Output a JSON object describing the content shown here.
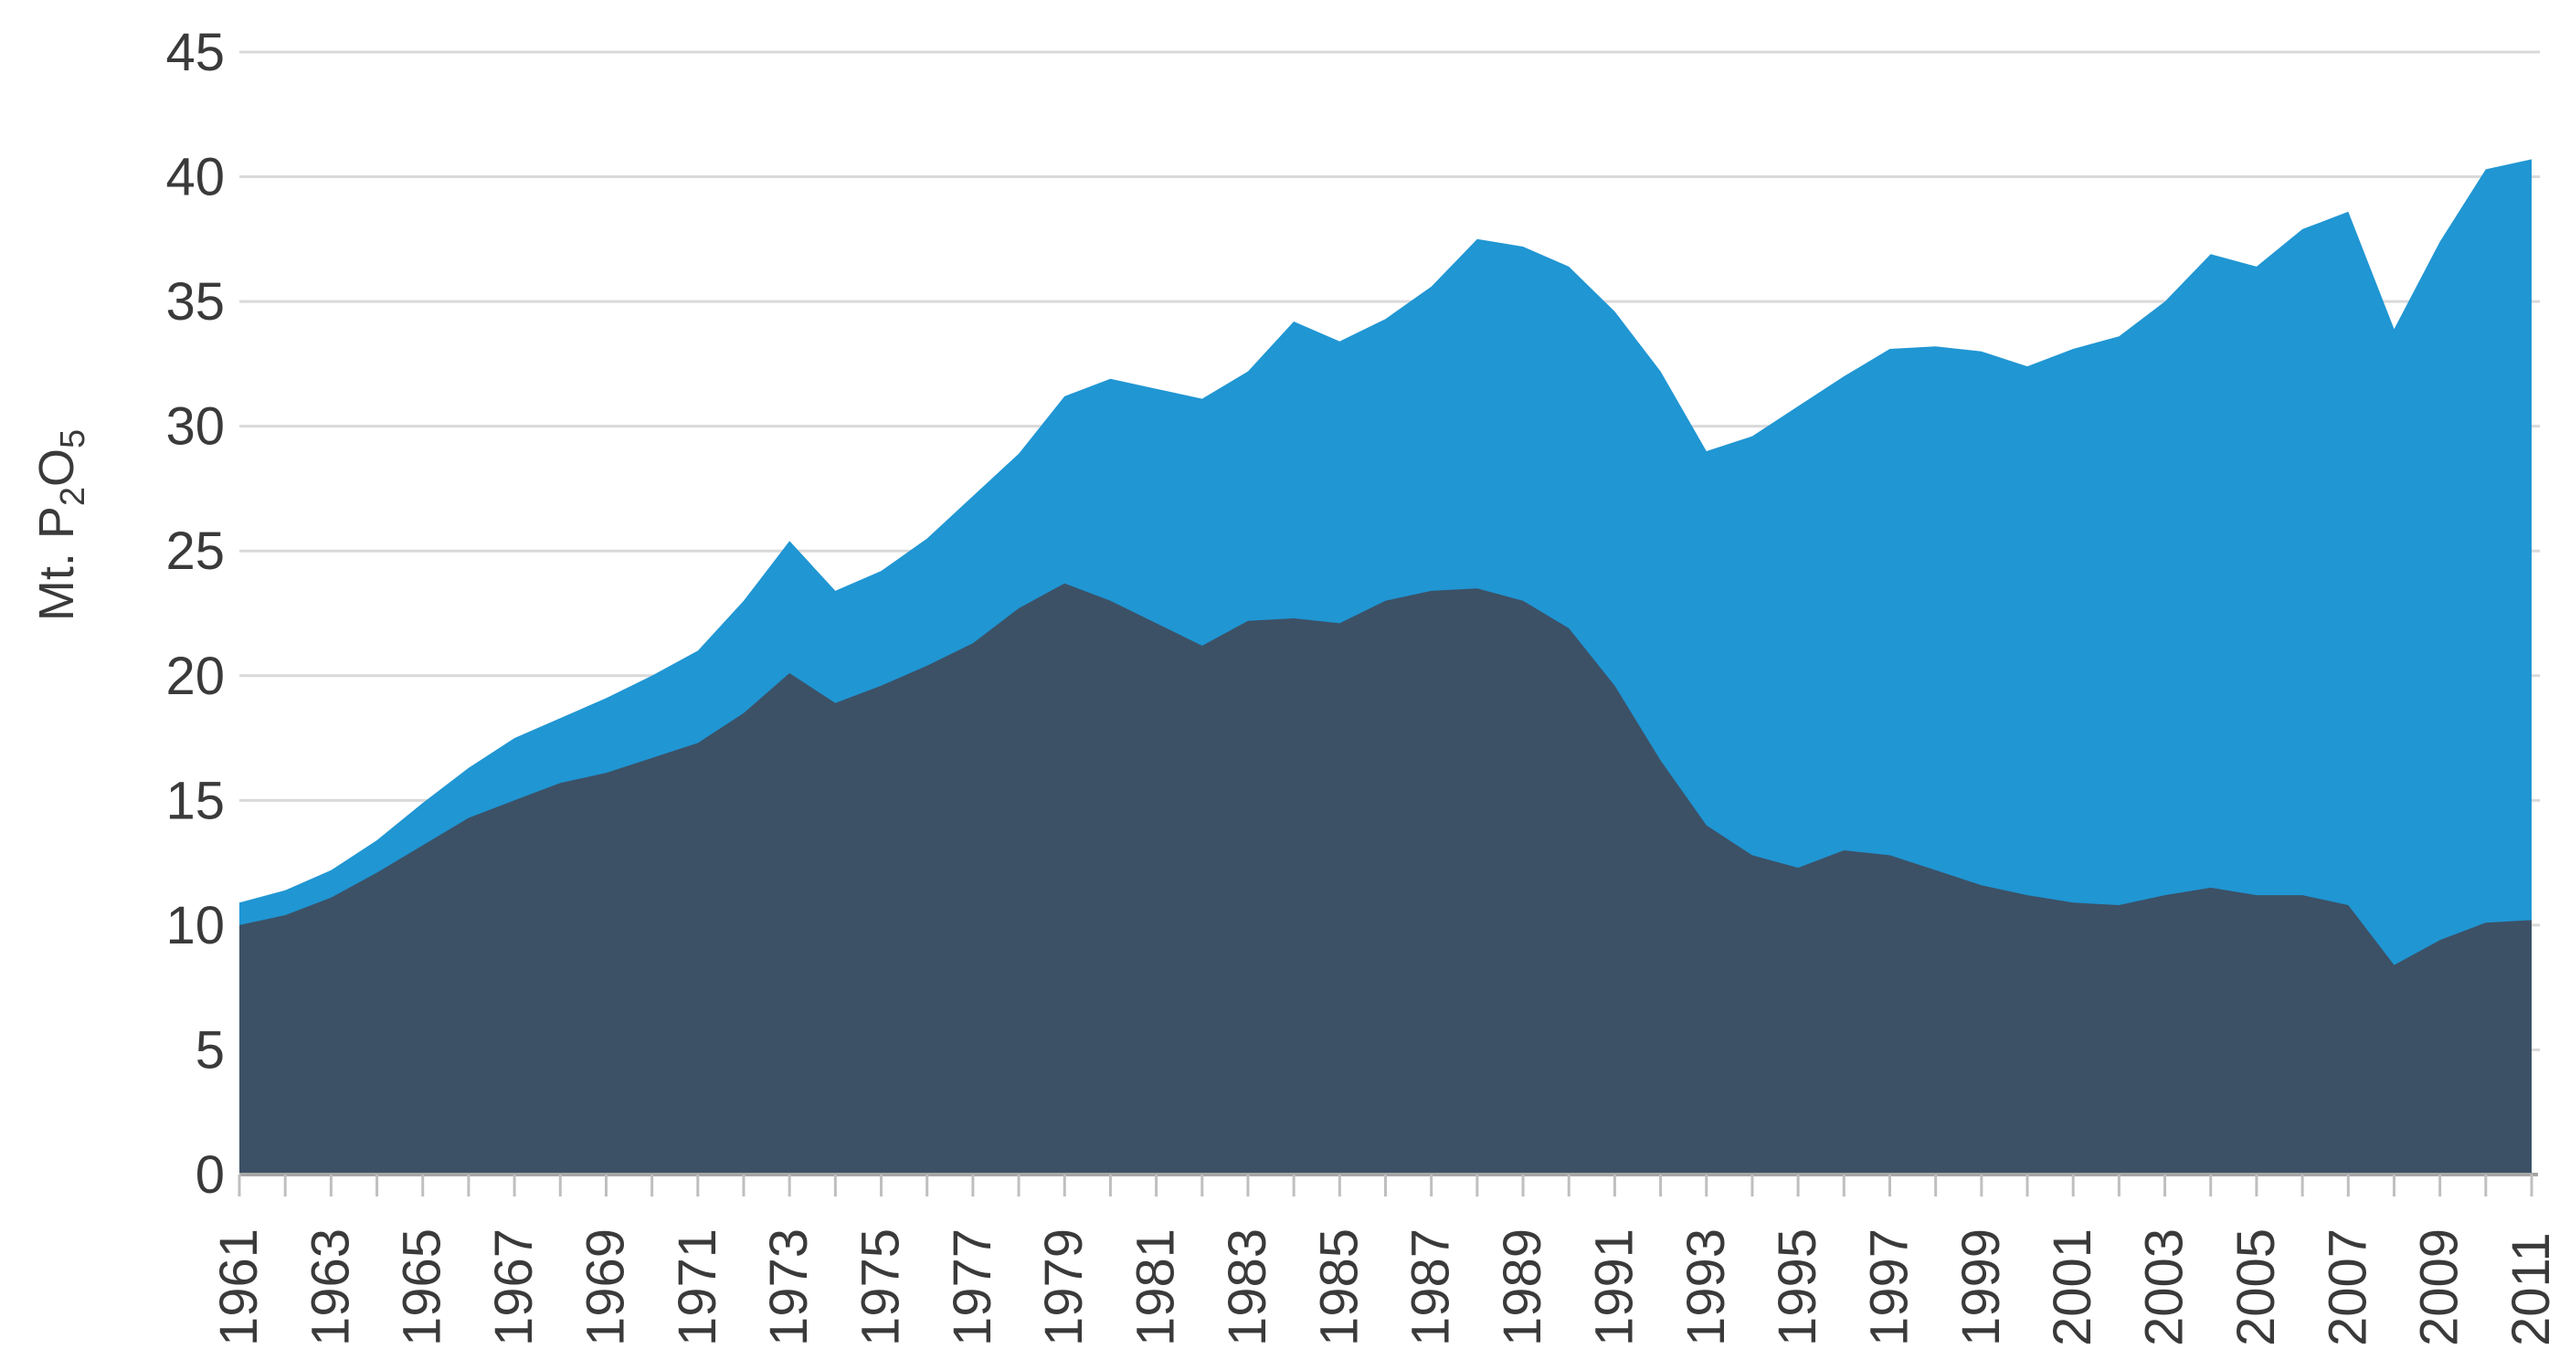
{
  "page": {
    "background": "#ffffff"
  },
  "chart_data": {
    "type": "area",
    "stacked": true,
    "title": "",
    "xlabel": "",
    "ylabel": "Mt. P2O5",
    "ylabel_rich": [
      {
        "t": "Mt. P",
        "sub": false
      },
      {
        "t": "2",
        "sub": true
      },
      {
        "t": "O",
        "sub": false
      },
      {
        "t": "5",
        "sub": true
      }
    ],
    "x": [
      1961,
      1962,
      1963,
      1964,
      1965,
      1966,
      1967,
      1968,
      1969,
      1970,
      1971,
      1972,
      1973,
      1974,
      1975,
      1976,
      1977,
      1978,
      1979,
      1980,
      1981,
      1982,
      1983,
      1984,
      1985,
      1986,
      1987,
      1988,
      1989,
      1990,
      1991,
      1992,
      1993,
      1994,
      1995,
      1996,
      1997,
      1998,
      1999,
      2000,
      2001,
      2002,
      2003,
      2004,
      2005,
      2006,
      2007,
      2008,
      2009,
      2010,
      2011
    ],
    "x_label_step": 2,
    "xlim": [
      1961,
      2011
    ],
    "ylim": [
      0,
      45
    ],
    "yticks": [
      0,
      5,
      10,
      15,
      20,
      25,
      30,
      35,
      40,
      45
    ],
    "grid": {
      "show": true,
      "color": "#D9D9D9"
    },
    "legend": {
      "show": false
    },
    "axis": {
      "line_color": "#A6A6A6",
      "tick_color": "#BFBFBF",
      "text_color": "#3A3A3A"
    },
    "series": [
      {
        "name": "dark-navy-lower-series",
        "color": "#3C5166",
        "values": [
          10.0,
          10.4,
          11.1,
          12.1,
          13.2,
          14.3,
          15.0,
          15.7,
          16.1,
          16.7,
          17.3,
          18.5,
          20.1,
          18.9,
          19.6,
          20.4,
          21.3,
          22.7,
          23.7,
          23.0,
          22.1,
          21.2,
          22.2,
          22.3,
          22.1,
          23.0,
          23.4,
          23.5,
          23.0,
          21.9,
          19.6,
          16.6,
          14.0,
          12.8,
          12.3,
          13.0,
          12.8,
          12.2,
          11.6,
          11.2,
          10.9,
          10.8,
          11.2,
          11.5,
          11.2,
          11.2,
          10.8,
          8.4,
          9.4,
          10.1,
          10.2
        ]
      },
      {
        "name": "bright-blue-upper-series",
        "color": "#2096D3",
        "values": [
          0.9,
          1.0,
          1.1,
          1.3,
          1.7,
          2.0,
          2.5,
          2.6,
          3.0,
          3.3,
          3.7,
          4.5,
          5.3,
          4.5,
          4.6,
          5.1,
          5.9,
          6.2,
          7.5,
          8.9,
          9.4,
          9.9,
          10.0,
          11.9,
          11.3,
          11.3,
          12.2,
          14.0,
          14.2,
          14.5,
          15.0,
          15.6,
          15.0,
          16.8,
          18.5,
          19.0,
          20.3,
          21.0,
          21.4,
          21.2,
          22.2,
          22.8,
          23.8,
          25.4,
          25.2,
          26.7,
          27.8,
          25.5,
          28.0,
          30.2,
          30.5
        ]
      }
    ]
  }
}
